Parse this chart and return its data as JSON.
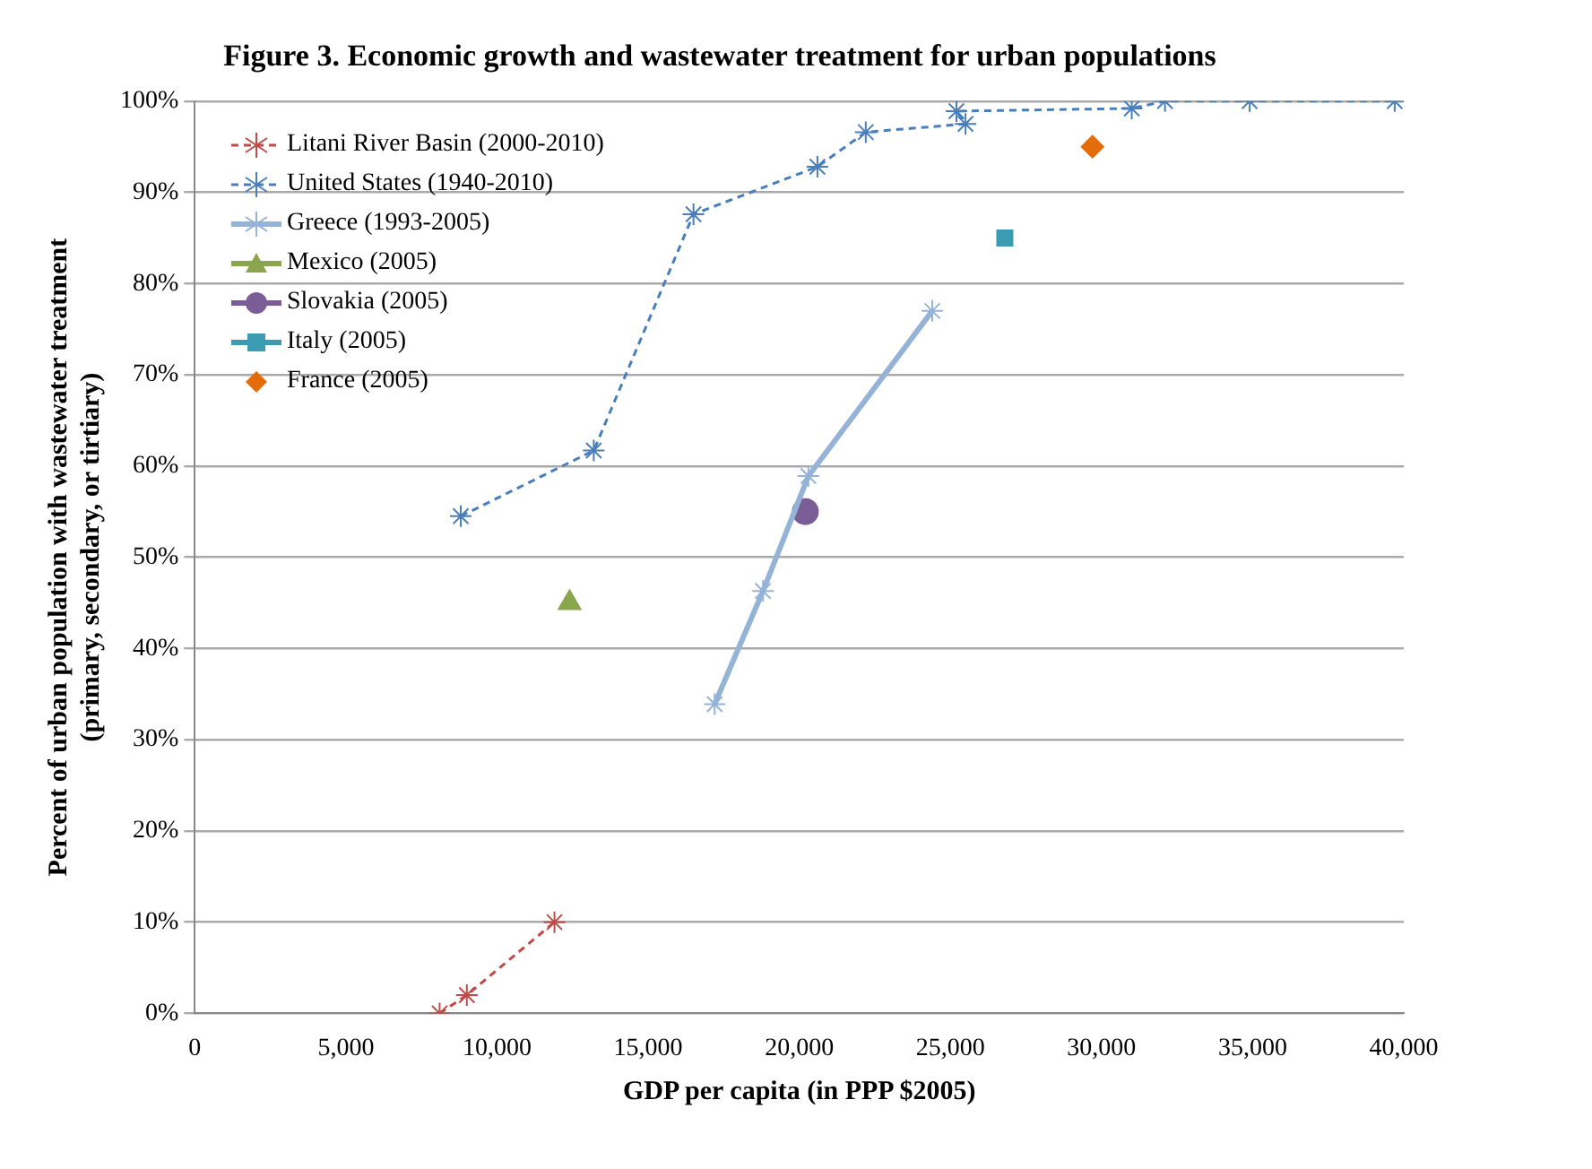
{
  "chart_data": {
    "type": "scatter",
    "title": "Figure 3. Economic growth and wastewater treatment for urban populations",
    "xlabel": "GDP per capita (in PPP $2005)",
    "ylabel": "Percent of urban population with wastewater treatment\n(primary, secondary, or tirtiary)",
    "xlim": [
      0,
      40000
    ],
    "xticks": [
      {
        "value": 0,
        "label": "0"
      },
      {
        "value": 5000,
        "label": "5,000"
      },
      {
        "value": 10000,
        "label": "10,000"
      },
      {
        "value": 15000,
        "label": "15,000"
      },
      {
        "value": 20000,
        "label": "20,000"
      },
      {
        "value": 25000,
        "label": "25,000"
      },
      {
        "value": 30000,
        "label": "30,000"
      },
      {
        "value": 35000,
        "label": "35,000"
      },
      {
        "value": 40000,
        "label": "40,000"
      }
    ],
    "ylim": [
      0,
      100
    ],
    "yticks": [
      {
        "value": 0,
        "label": "0%"
      },
      {
        "value": 10,
        "label": "10%"
      },
      {
        "value": 20,
        "label": "20%"
      },
      {
        "value": 30,
        "label": "30%"
      },
      {
        "value": 40,
        "label": "40%"
      },
      {
        "value": 50,
        "label": "50%"
      },
      {
        "value": 60,
        "label": "60%"
      },
      {
        "value": 70,
        "label": "70%"
      },
      {
        "value": 80,
        "label": "80%"
      },
      {
        "value": 90,
        "label": "90%"
      },
      {
        "value": 100,
        "label": "100%"
      }
    ],
    "grid": "y",
    "legend": "top left",
    "series": [
      {
        "name": "Litani River Basin (2000-2010)",
        "type": "line",
        "color": "#be4b48",
        "marker": "cross",
        "line_style": "dashed",
        "x": [
          8100,
          9000,
          11900
        ],
        "values": [
          0,
          2,
          10
        ]
      },
      {
        "name": "United States (1940-2010)",
        "type": "line",
        "color": "#4a7ebb",
        "marker": "cross",
        "line_style": "dashed",
        "x": [
          8800,
          13200,
          16500,
          20600,
          22200,
          25500,
          25200,
          31000,
          32100,
          34900,
          39700
        ],
        "values": [
          54.5,
          61.7,
          87.6,
          92.8,
          96.6,
          97.5,
          98.9,
          99.2,
          100,
          100,
          100
        ]
      },
      {
        "name": "Greece (1993-2005)",
        "type": "line",
        "color": "#95b3d7",
        "marker": "cross",
        "line_style": "solid",
        "x": [
          17200,
          18800,
          20300,
          24400
        ],
        "values": [
          33.9,
          46.3,
          58.9,
          77
        ]
      },
      {
        "name": "Mexico (2005)",
        "type": "scatter",
        "color": "#8aa64d",
        "marker": "triangle",
        "x": [
          12400
        ],
        "values": [
          45
        ]
      },
      {
        "name": "Slovakia (2005)",
        "type": "scatter",
        "color": "#7a5c97",
        "marker": "circle",
        "x": [
          20200
        ],
        "values": [
          55
        ]
      },
      {
        "name": "Italy (2005)",
        "type": "scatter",
        "color": "#3b9bb0",
        "marker": "square",
        "x": [
          26800
        ],
        "values": [
          85
        ]
      },
      {
        "name": "France (2005)",
        "type": "scatter",
        "color": "#e46c0a",
        "marker": "diamond",
        "x": [
          29700
        ],
        "values": [
          95
        ]
      }
    ]
  }
}
